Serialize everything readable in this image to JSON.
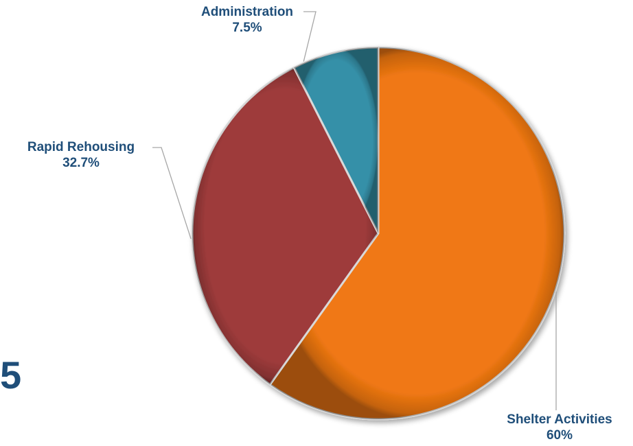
{
  "corner_text": "5",
  "colors": {
    "label_text": "#1f4e79",
    "shelter": "#f07812",
    "rapid": "#9e3b3b",
    "admin": "#3590a8",
    "leader": "#a6a6a6"
  },
  "chart_data": {
    "type": "pie",
    "title": "",
    "slices": [
      {
        "label": "Shelter Activities",
        "value_text": "60%",
        "value": 60,
        "color": "#f07812"
      },
      {
        "label": "Rapid Rehousing",
        "value_text": "32.7%",
        "value": 32.7,
        "color": "#9e3b3b"
      },
      {
        "label": "Administration",
        "value_text": "7.5%",
        "value": 7.5,
        "color": "#3590a8"
      }
    ],
    "start_angle": "12 o'clock",
    "direction": "clockwise",
    "legend": "none",
    "style": "3d-bevel"
  }
}
